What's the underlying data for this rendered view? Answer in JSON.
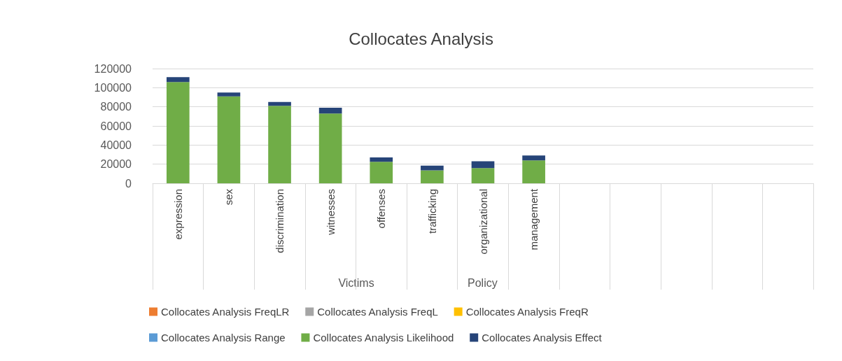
{
  "chart_data": {
    "type": "bar",
    "title": "Collocates Analysis",
    "stacked": true,
    "categories": [
      "expression",
      "sex",
      "discrimination",
      "witnesses",
      "offenses",
      "trafficking",
      "organizational",
      "management",
      null,
      null,
      null,
      null,
      null
    ],
    "series": [
      {
        "name": "Collocates Analysis FreqLR",
        "color": "#ed7d31",
        "values": [
          null,
          null,
          null,
          null,
          null,
          null,
          null,
          null,
          null,
          null,
          null,
          null,
          null
        ]
      },
      {
        "name": "Collocates Analysis FreqL",
        "color": "#a5a5a5",
        "values": [
          null,
          null,
          null,
          null,
          null,
          null,
          null,
          null,
          null,
          null,
          null,
          null,
          null
        ]
      },
      {
        "name": "Collocates Analysis FreqR",
        "color": "#ffc000",
        "values": [
          null,
          null,
          null,
          null,
          null,
          null,
          null,
          null,
          null,
          null,
          null,
          null,
          null
        ]
      },
      {
        "name": "Collocates Analysis Range",
        "color": "#5b9bd5",
        "values": [
          null,
          null,
          null,
          null,
          null,
          null,
          null,
          null,
          null,
          null,
          null,
          null,
          null
        ]
      },
      {
        "name": "Collocates Analysis Likelihood",
        "color": "#70ad47",
        "values": [
          106000,
          91000,
          81000,
          73000,
          22500,
          13500,
          16000,
          24000,
          null,
          null,
          null,
          null,
          null
        ]
      },
      {
        "name": "Collocates Analysis Effect",
        "color": "#264478",
        "values": [
          5000,
          4000,
          4000,
          6000,
          4500,
          5000,
          7000,
          5000,
          null,
          null,
          null,
          null,
          null
        ]
      }
    ],
    "ylim": [
      0,
      120000
    ],
    "yticks": [
      0,
      20000,
      40000,
      60000,
      80000,
      100000,
      120000
    ],
    "grid": "y",
    "legend": "bottom",
    "annotations": [
      "Victims",
      "Policy"
    ]
  }
}
